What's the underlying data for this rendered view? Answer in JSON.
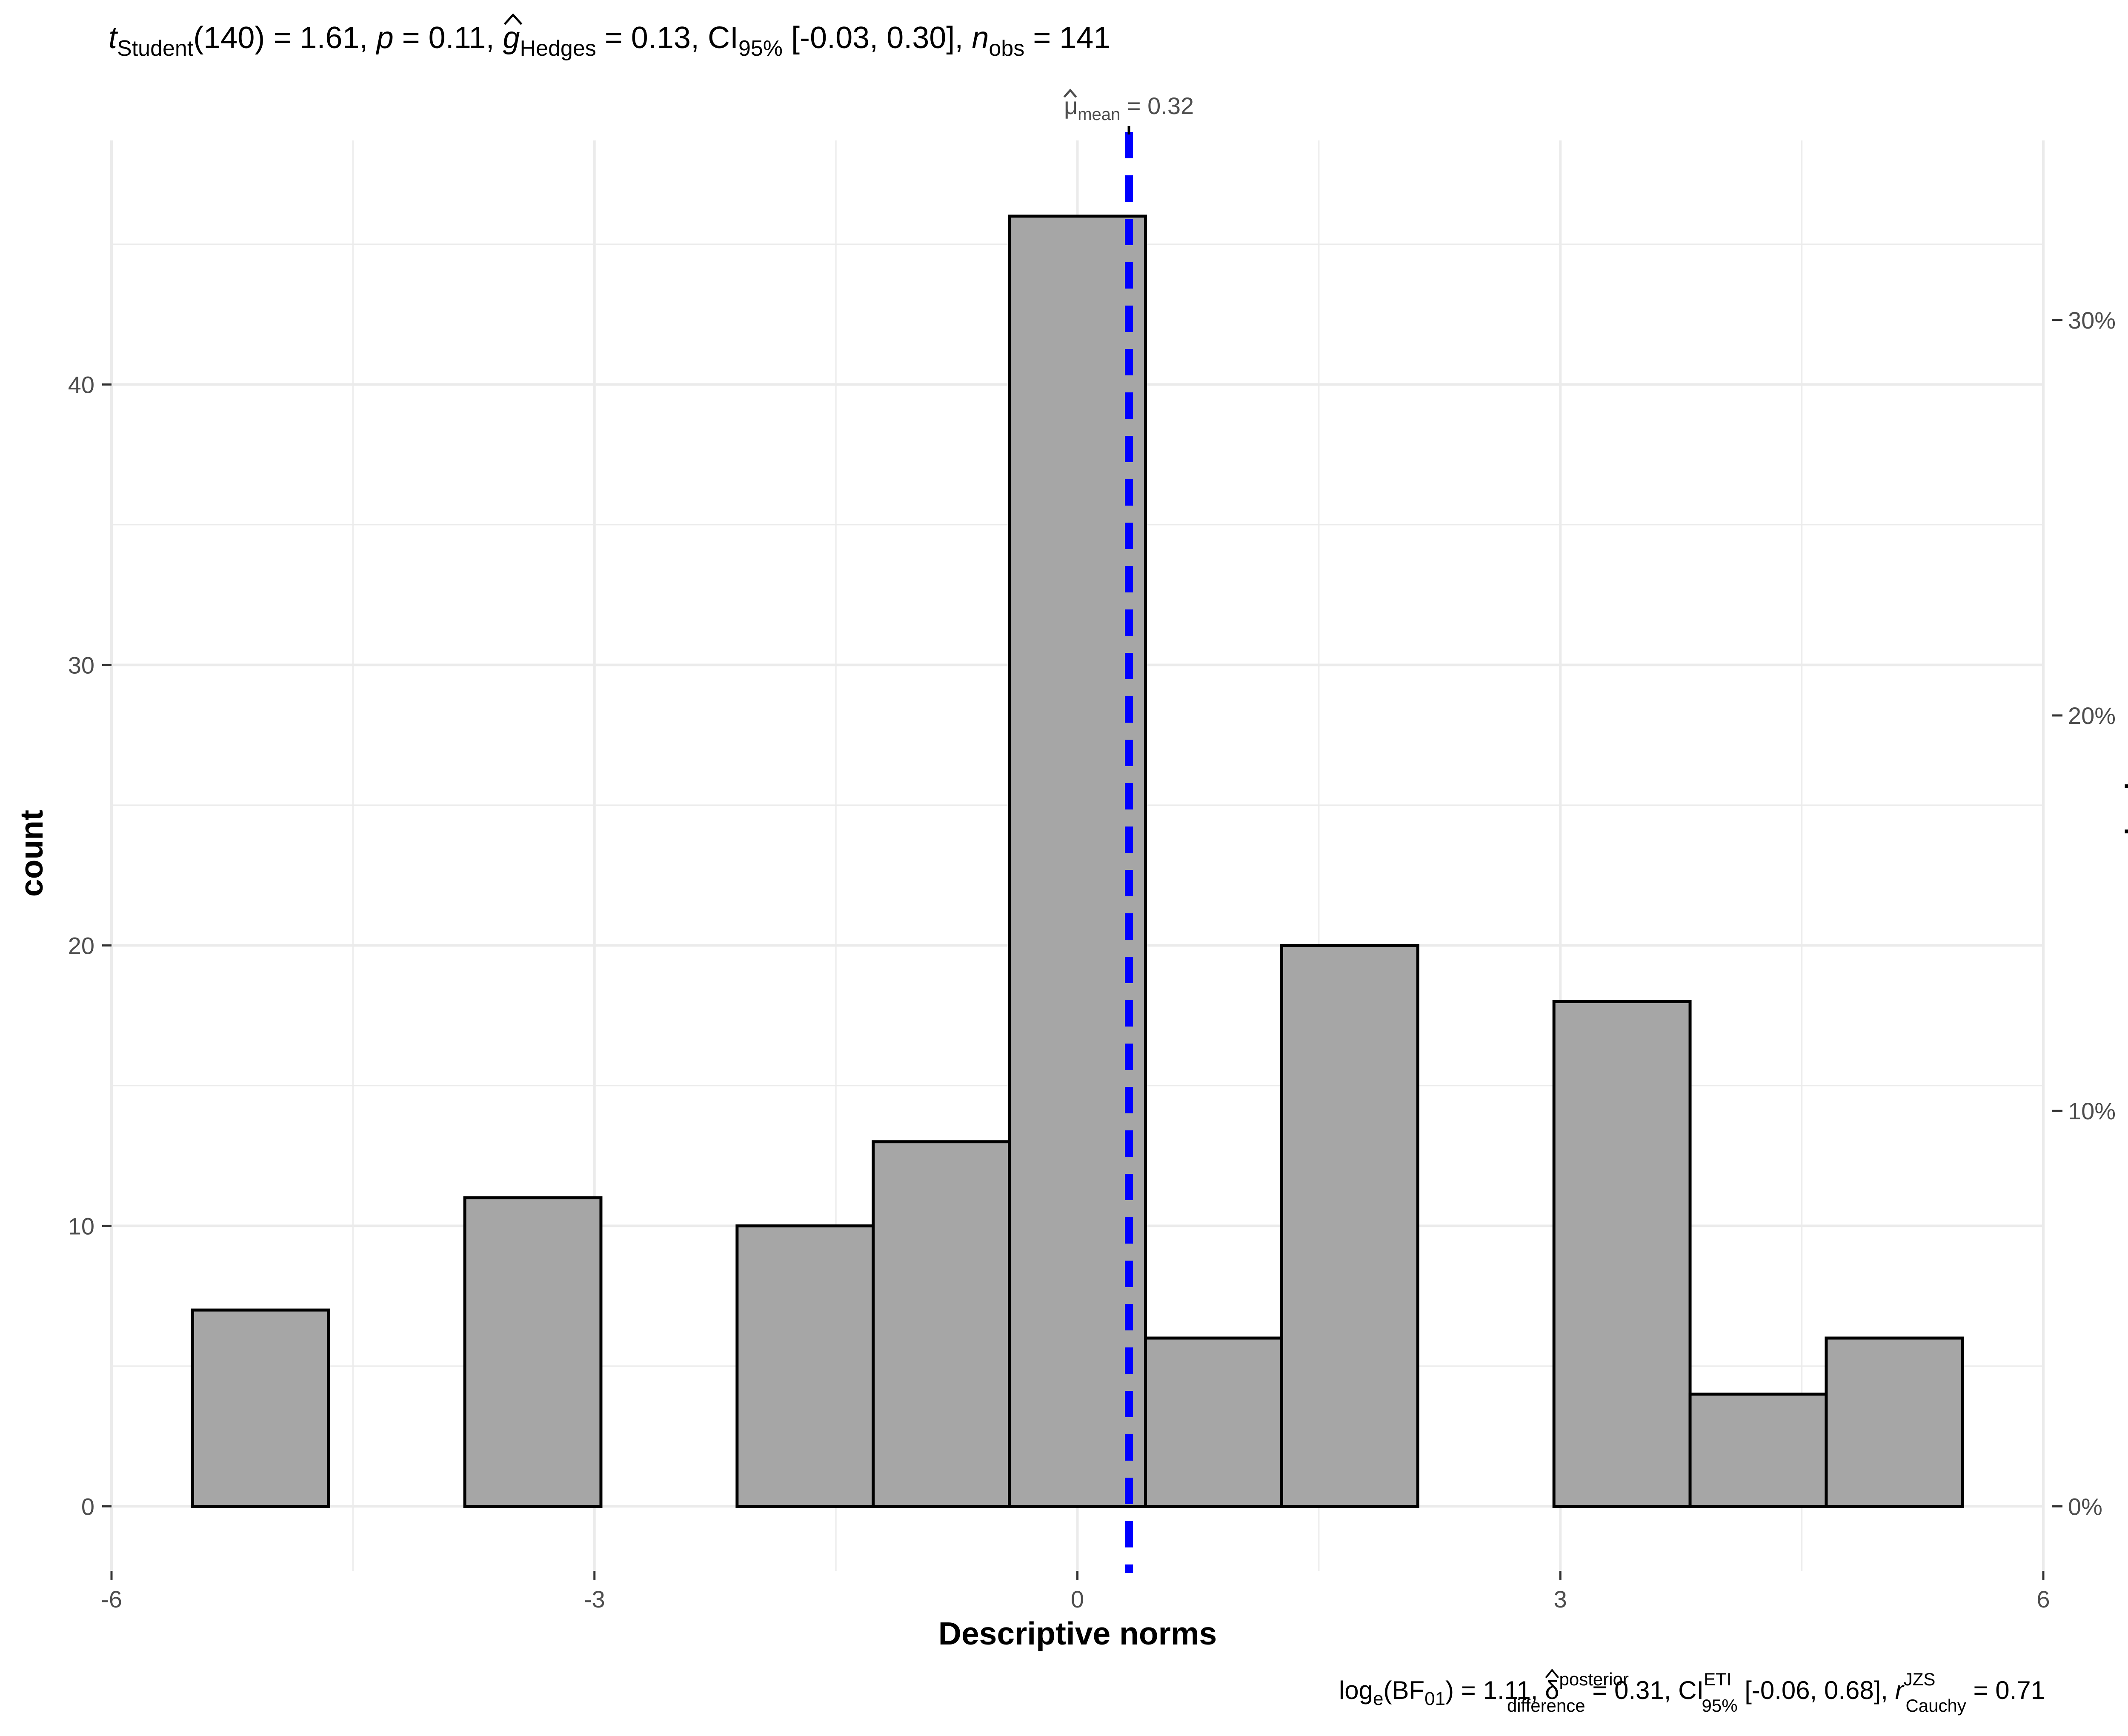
{
  "chart_data": {
    "type": "bar",
    "subtype": "histogram",
    "title": "",
    "subtitle": {
      "t_symbol": "t",
      "t_sub": "Student",
      "t_value": "(140) = 1.61, ",
      "p_symbol": "p",
      "p_value": " = 0.11, ",
      "g_symbol": "g",
      "g_sub": "Hedges",
      "g_value": " = 0.13, CI",
      "ci_sub": "95%",
      "ci_value": " [-0.03, 0.30], ",
      "n_symbol": "n",
      "n_sub": "obs",
      "n_value": " = 141"
    },
    "caption": {
      "log_text": "log",
      "log_sub": "e",
      "bf_open": "(BF",
      "bf_sub": "01",
      "bf_value": ") = 1.11, ",
      "delta_symbol": "δ",
      "delta_sup": "posterior",
      "delta_sub": "difference",
      "delta_value": " = 0.31, CI",
      "ci_sup": "ETI",
      "ci_sub": "95%",
      "ci_value": " [-0.06, 0.68], ",
      "r_symbol": "r",
      "r_sup": "JZS",
      "r_sub": "Cauchy",
      "r_value": " = 0.71"
    },
    "xlabel": "Descriptive norms",
    "ylabel": "count",
    "ylabel_right": "proportion",
    "xlim": [
      -6,
      6
    ],
    "ylim": [
      -2.3,
      48.7
    ],
    "x_ticks": [
      -6,
      -3,
      0,
      3,
      6
    ],
    "x_tick_labels": [
      "-6",
      "-3",
      "0",
      "3",
      "6"
    ],
    "y_ticks": [
      0,
      10,
      20,
      30,
      40
    ],
    "y_tick_labels": [
      "0",
      "10",
      "20",
      "30",
      "40"
    ],
    "y_right_ticks": [
      0,
      0.1,
      0.2,
      0.3
    ],
    "y_right_tick_labels": [
      "0%",
      "10%",
      "20%",
      "30%"
    ],
    "total_n": 141,
    "bin_width": 0.8457,
    "bins": [
      {
        "x0": -5.4969,
        "x1": -4.6512,
        "count": 7
      },
      {
        "x0": -4.6512,
        "x1": -3.8055,
        "count": 0
      },
      {
        "x0": -3.8055,
        "x1": -2.9598,
        "count": 11
      },
      {
        "x0": -2.9598,
        "x1": -2.1141,
        "count": 0
      },
      {
        "x0": -2.1141,
        "x1": -1.2684,
        "count": 10
      },
      {
        "x0": -1.2684,
        "x1": -0.4227,
        "count": 13
      },
      {
        "x0": -0.4227,
        "x1": 0.423,
        "count": 46
      },
      {
        "x0": 0.423,
        "x1": 1.2687,
        "count": 6
      },
      {
        "x0": 1.2687,
        "x1": 2.1144,
        "count": 20
      },
      {
        "x0": 2.1144,
        "x1": 2.9601,
        "count": 0
      },
      {
        "x0": 2.9601,
        "x1": 3.8058,
        "count": 18
      },
      {
        "x0": 3.8058,
        "x1": 4.6515,
        "count": 4
      },
      {
        "x0": 4.6515,
        "x1": 5.4972,
        "count": 6
      }
    ],
    "mean": {
      "value": 0.32,
      "label_symbol": "μ",
      "label_sub": "mean",
      "label_value": " = 0.32"
    },
    "grid": true,
    "colors": {
      "bar_fill": "#a6a6a6",
      "bar_stroke": "#000000",
      "mean_line": "#0000ff",
      "grid": "#ebebeb",
      "tick_text": "#4d4d4d"
    }
  }
}
